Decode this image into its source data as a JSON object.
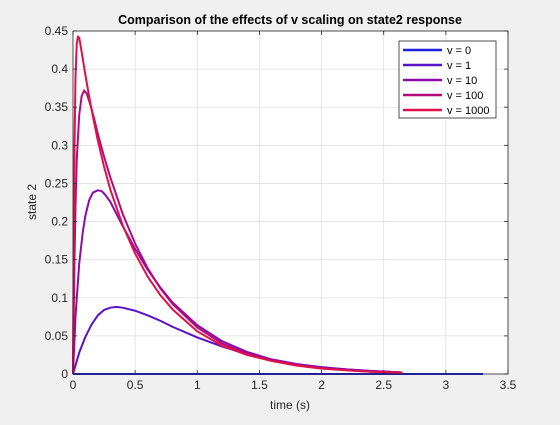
{
  "chart_data": {
    "type": "line",
    "title": "Comparison of the effects of v scaling on state2 response",
    "xlabel": "time (s)",
    "ylabel": "state 2",
    "xlim": [
      0,
      3.5
    ],
    "ylim": [
      0,
      0.45
    ],
    "xticks": [
      "0",
      "0.5",
      "1",
      "1.5",
      "2",
      "2.5",
      "3",
      "3.5"
    ],
    "yticks": [
      "0",
      "0.05",
      "0.1",
      "0.15",
      "0.2",
      "0.25",
      "0.3",
      "0.35",
      "0.4",
      "0.45"
    ],
    "grid": true,
    "legend_position": "top-right",
    "series": [
      {
        "name": "v = 0",
        "color": "#1f1fdf",
        "x": [
          0,
          0.5,
          1,
          1.5,
          2,
          2.5,
          3,
          3.3
        ],
        "y": [
          0,
          0,
          0,
          0,
          0,
          0,
          0,
          0
        ]
      },
      {
        "name": "v = 1",
        "color": "#5a12c8",
        "x": [
          0,
          0.05,
          0.1,
          0.15,
          0.2,
          0.25,
          0.3,
          0.35,
          0.4,
          0.5,
          0.6,
          0.7,
          0.8,
          1.0,
          1.2,
          1.4,
          1.6,
          1.8,
          2.0,
          2.2,
          2.4,
          2.65
        ],
        "y": [
          0,
          0.028,
          0.049,
          0.065,
          0.077,
          0.084,
          0.087,
          0.088,
          0.087,
          0.083,
          0.077,
          0.07,
          0.062,
          0.048,
          0.036,
          0.026,
          0.019,
          0.013,
          0.009,
          0.006,
          0.004,
          0.002
        ]
      },
      {
        "name": "v = 10",
        "color": "#8b0ca8",
        "x": [
          0,
          0.02,
          0.05,
          0.08,
          0.1,
          0.13,
          0.16,
          0.2,
          0.23,
          0.26,
          0.3,
          0.35,
          0.4,
          0.5,
          0.6,
          0.7,
          0.8,
          1.0,
          1.2,
          1.4,
          1.6,
          1.8,
          2.0,
          2.2,
          2.4,
          2.65
        ],
        "y": [
          0,
          0.075,
          0.145,
          0.188,
          0.208,
          0.228,
          0.238,
          0.241,
          0.24,
          0.235,
          0.226,
          0.21,
          0.194,
          0.164,
          0.137,
          0.114,
          0.094,
          0.064,
          0.043,
          0.029,
          0.019,
          0.013,
          0.008,
          0.006,
          0.004,
          0.002
        ]
      },
      {
        "name": "v = 100",
        "color": "#b5097e",
        "x": [
          0,
          0.01,
          0.02,
          0.03,
          0.05,
          0.07,
          0.09,
          0.11,
          0.14,
          0.17,
          0.2,
          0.25,
          0.3,
          0.4,
          0.5,
          0.6,
          0.7,
          0.8,
          1.0,
          1.2,
          1.4,
          1.6,
          1.8,
          2.0,
          2.2,
          2.4,
          2.65
        ],
        "y": [
          0,
          0.13,
          0.22,
          0.28,
          0.34,
          0.365,
          0.372,
          0.368,
          0.353,
          0.335,
          0.315,
          0.285,
          0.258,
          0.21,
          0.171,
          0.139,
          0.113,
          0.092,
          0.061,
          0.04,
          0.027,
          0.018,
          0.012,
          0.008,
          0.005,
          0.003,
          0.002
        ]
      },
      {
        "name": "v = 1000",
        "color": "#e0104a",
        "x": [
          0,
          0.005,
          0.01,
          0.02,
          0.03,
          0.04,
          0.05,
          0.06,
          0.08,
          0.1,
          0.13,
          0.16,
          0.2,
          0.25,
          0.3,
          0.4,
          0.5,
          0.6,
          0.7,
          0.8,
          1.0,
          1.2,
          1.4,
          1.6,
          1.8,
          2.0,
          2.2,
          2.4,
          2.65
        ],
        "y": [
          0,
          0.15,
          0.27,
          0.39,
          0.433,
          0.443,
          0.441,
          0.432,
          0.412,
          0.392,
          0.364,
          0.338,
          0.306,
          0.272,
          0.242,
          0.195,
          0.158,
          0.128,
          0.104,
          0.085,
          0.056,
          0.037,
          0.025,
          0.017,
          0.011,
          0.007,
          0.005,
          0.003,
          0.002
        ]
      }
    ]
  }
}
